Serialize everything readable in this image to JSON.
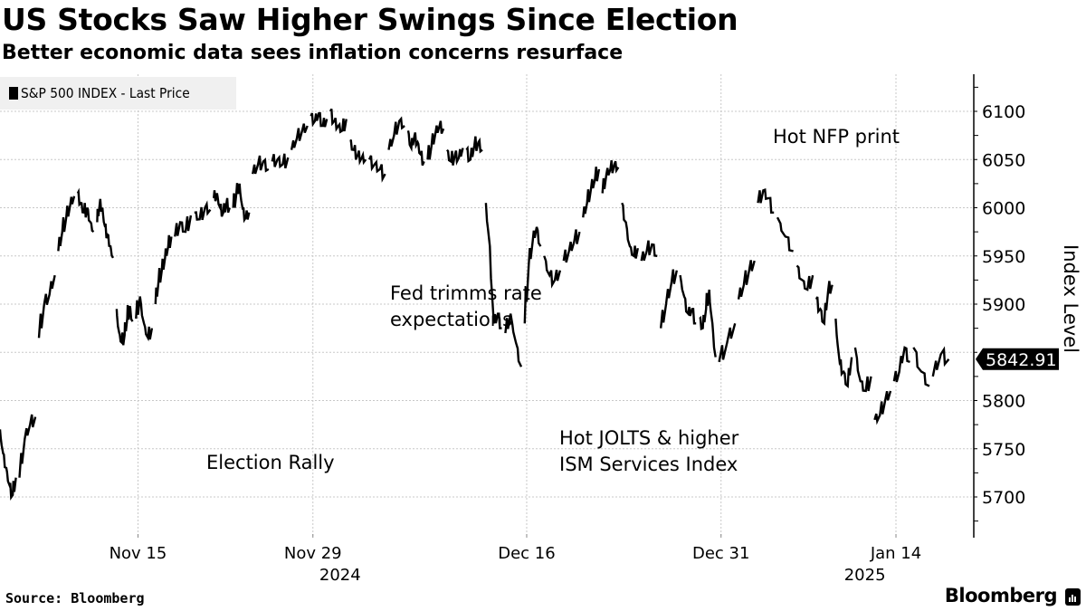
{
  "header": {
    "title": "US Stocks Saw Higher Swings Since Election",
    "subtitle": "Better economic data sees inflation concerns resurface"
  },
  "legend": {
    "label": "S&P 500 INDEX - Last Price",
    "color": "#000000"
  },
  "footer": {
    "source": "Source: Bloomberg",
    "brand": "Bloomberg",
    "brand_icon": "bloomberg-terminal-icon"
  },
  "chart_data": {
    "type": "line",
    "title": "US Stocks Saw Higher Swings Since Election",
    "subtitle": "Better economic data sees inflation concerns resurface",
    "xlabel": "",
    "ylabel": "Index Level",
    "ylim": [
      5655,
      6140
    ],
    "y_ticks": [
      5700,
      5750,
      5800,
      5850,
      5900,
      5950,
      6000,
      6050,
      6100
    ],
    "y_tick_labels": [
      "5700",
      "5750",
      "5800",
      "5850",
      "5900",
      "5950",
      "6000",
      "6050",
      "6100"
    ],
    "x_ticks": [
      {
        "label": "Nov 15",
        "index": 7
      },
      {
        "label": "Nov 29",
        "index": 16
      },
      {
        "label": "Dec 16",
        "index": 27
      },
      {
        "label": "Dec 31",
        "index": 37
      },
      {
        "label": "Jan 14",
        "index": 46
      }
    ],
    "year_labels": [
      {
        "label": "2024",
        "index": 17
      },
      {
        "label": "2025",
        "index": 44
      }
    ],
    "x_count": 49,
    "grid": true,
    "legend_position": "top-left",
    "last_value_label": "5842.91",
    "series": [
      {
        "name": "S&P 500 INDEX - Last Price",
        "sessions": [
          [
            5770,
            5745,
            5730,
            5712,
            5702,
            5720
          ],
          [
            5720,
            5760,
            5775,
            5783
          ],
          [
            5865,
            5900,
            5910,
            5930
          ],
          [
            5955,
            5975,
            5990,
            6003,
            6012
          ],
          [
            6015,
            6005,
            5995,
            6000,
            5985,
            5975
          ],
          [
            5985,
            6005,
            6000,
            5980,
            5972,
            5960,
            5948
          ],
          [
            5895,
            5870,
            5860,
            5868,
            5885,
            5898,
            5882
          ],
          [
            5885,
            5908,
            5880,
            5865,
            5875
          ],
          [
            5900,
            5925,
            5935,
            5948,
            5960,
            5970
          ],
          [
            5970,
            5985,
            5975,
            5992
          ],
          [
            5995,
            5988,
            6000,
            5998
          ],
          [
            6010,
            6015,
            6000,
            5995,
            6005,
            6000
          ],
          [
            6000,
            6015,
            6025,
            5998,
            5990,
            5995
          ],
          [
            6035,
            6045,
            6048,
            6040
          ],
          [
            6048,
            6050,
            6045,
            6052
          ],
          [
            6060,
            6072,
            6080,
            6085
          ],
          [
            6095,
            6090,
            6098,
            6085,
            6092
          ],
          [
            6100,
            6090,
            6085,
            6080,
            6092
          ],
          [
            6070,
            6060,
            6055,
            6052,
            6050
          ],
          [
            6050,
            6045,
            6040,
            6035
          ],
          [
            6060,
            6075,
            6090,
            6085
          ],
          [
            6080,
            6062,
            6075,
            6068,
            6055,
            6048
          ],
          [
            6050,
            6065,
            6078,
            6085,
            6082
          ],
          [
            6060,
            6048,
            6055,
            6052,
            6062
          ],
          [
            6060,
            6050,
            6065,
            6068,
            6060
          ],
          [
            6005,
            5960,
            5880,
            5890,
            5875
          ],
          [
            5870,
            5890,
            5860,
            5835
          ],
          [
            5880,
            5940,
            5965,
            5980,
            5960
          ],
          [
            5950,
            5930,
            5925,
            5935
          ],
          [
            5945,
            5955,
            5965,
            5975
          ],
          [
            5990,
            6005,
            6020,
            6030,
            6040
          ],
          [
            6015,
            6035,
            6040,
            6045,
            6042
          ],
          [
            6005,
            5985,
            5960,
            5950,
            5958
          ],
          [
            5945,
            5955,
            5962,
            5950
          ],
          [
            5875,
            5900,
            5922,
            5935
          ],
          [
            5930,
            5908,
            5890,
            5895,
            5880
          ],
          [
            5885,
            5875,
            5895,
            5915,
            5880,
            5845
          ],
          [
            5840,
            5860,
            5880
          ],
          [
            5905,
            5920,
            5935,
            5945
          ],
          [
            6005,
            6018,
            6010,
            5995
          ],
          [
            5990,
            5970,
            5955
          ],
          [
            5940,
            5925,
            5915,
            5930
          ],
          [
            5905,
            5895,
            5880,
            5915,
            5920
          ],
          [
            5885,
            5840,
            5830,
            5815,
            5845
          ],
          [
            5855,
            5820,
            5810,
            5825
          ],
          [
            5780,
            5785,
            5800,
            5810
          ],
          [
            5820,
            5830,
            5855,
            5840
          ],
          [
            5855,
            5830,
            5815
          ],
          [
            5825,
            5848,
            5842.91
          ]
        ]
      }
    ]
  }
}
